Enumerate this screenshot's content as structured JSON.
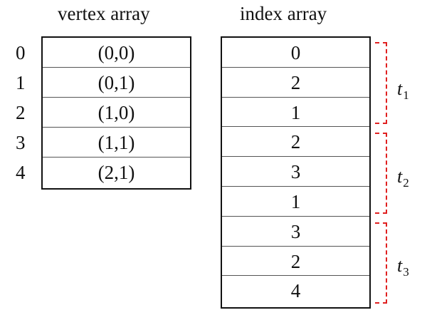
{
  "vertex_array": {
    "title": "vertex array",
    "indices": [
      "0",
      "1",
      "2",
      "3",
      "4"
    ],
    "values": [
      "(0,0)",
      "(0,1)",
      "(1,0)",
      "(1,1)",
      "(2,1)"
    ]
  },
  "index_array": {
    "title": "index array",
    "values": [
      "0",
      "2",
      "1",
      "2",
      "3",
      "1",
      "3",
      "2",
      "4"
    ]
  },
  "triangles": [
    {
      "var": "t",
      "sub": "1"
    },
    {
      "var": "t",
      "sub": "2"
    },
    {
      "var": "t",
      "sub": "3"
    }
  ],
  "colors": {
    "bracket": "#e02020",
    "border": "#111111"
  }
}
